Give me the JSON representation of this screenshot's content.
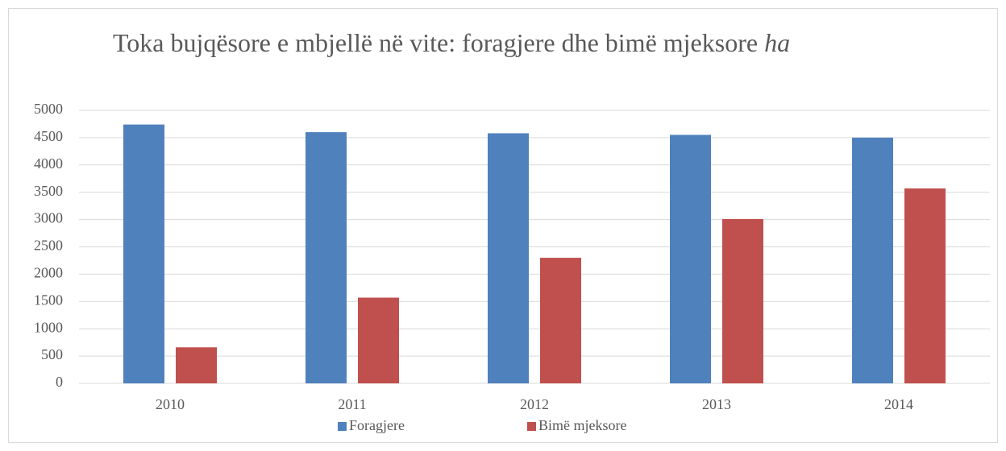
{
  "chart_data": {
    "type": "bar",
    "title": "Toka bujqësore e mbjellë në vite: foragjere dhe bimë mjeksore",
    "title_unit": "ha",
    "categories": [
      "2010",
      "2011",
      "2012",
      "2013",
      "2014"
    ],
    "series": [
      {
        "name": "Foragjere",
        "color": "#4f81bd",
        "values": [
          4740,
          4600,
          4580,
          4550,
          4500
        ]
      },
      {
        "name": "Bimë mjeksore",
        "color": "#c0504d",
        "values": [
          660,
          1570,
          2300,
          3010,
          3570
        ]
      }
    ],
    "ylim": [
      0,
      5000
    ],
    "yticks": [
      0,
      500,
      1000,
      1500,
      2000,
      2500,
      3000,
      3500,
      4000,
      4500,
      5000
    ],
    "grid": true,
    "legend": "bottom"
  }
}
